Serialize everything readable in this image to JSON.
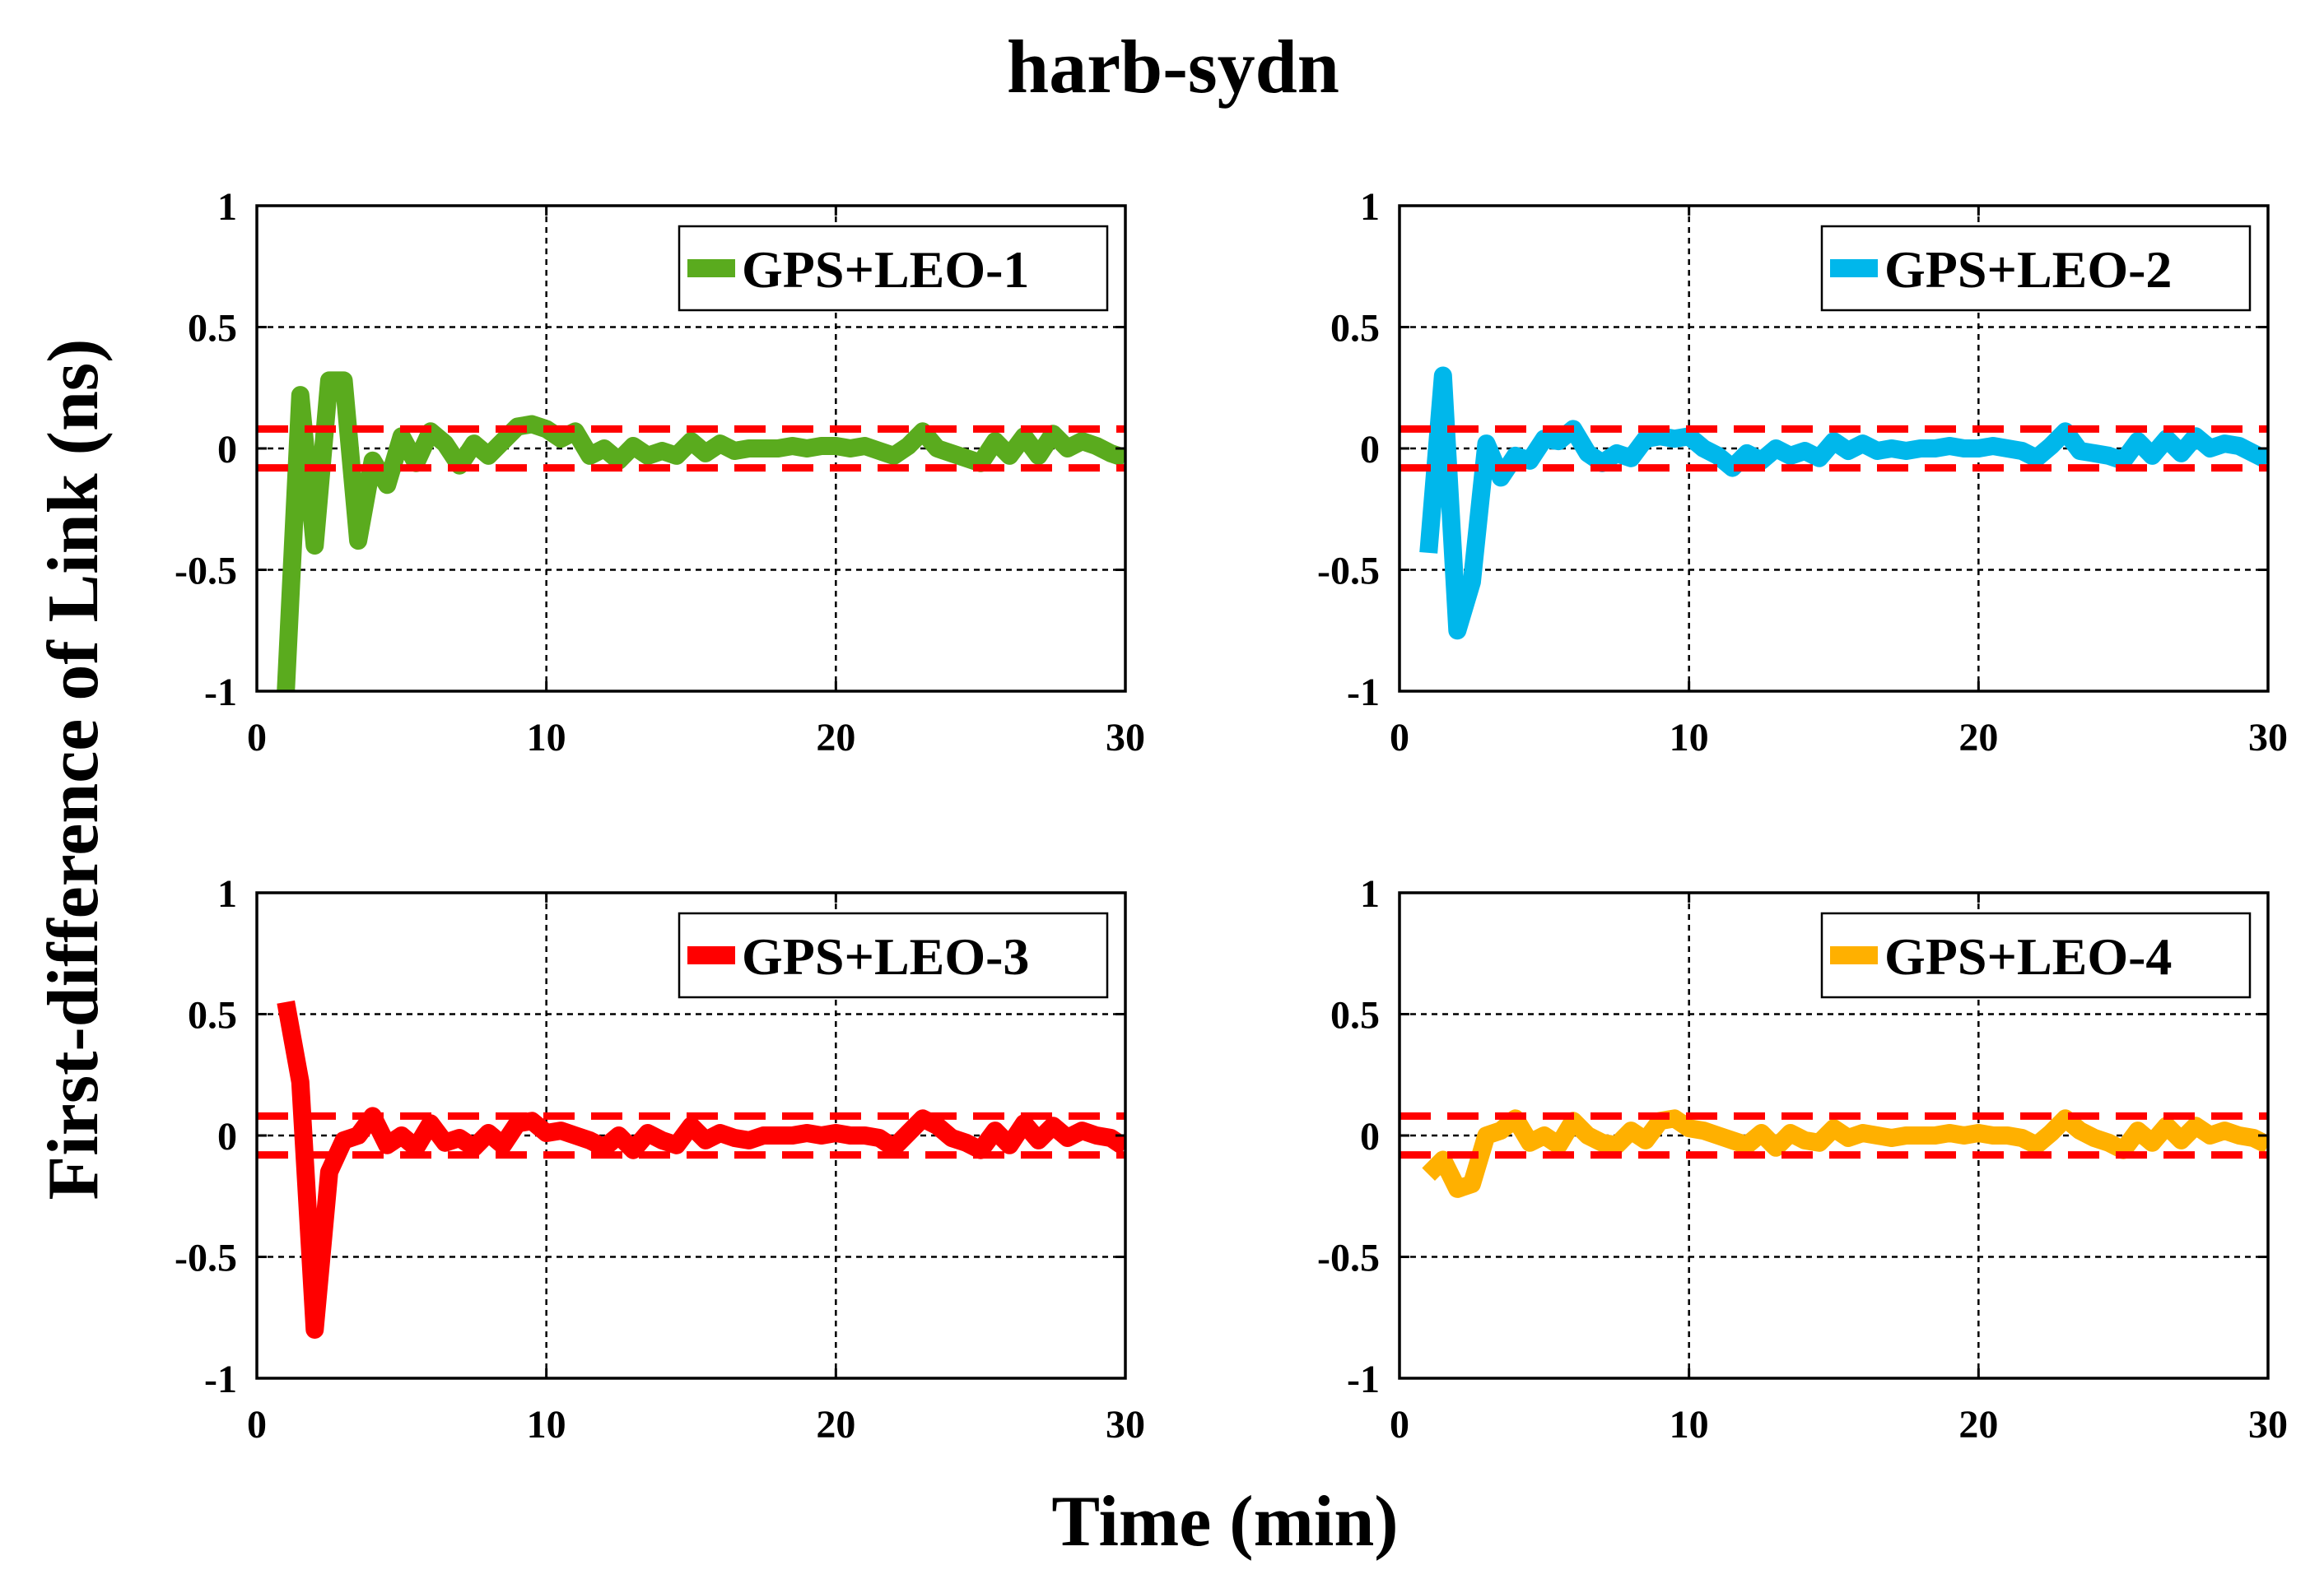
{
  "figure": {
    "title": "harb-sydn",
    "xlabel": "Time (min)",
    "ylabel": "First-difference of Link (ns)"
  },
  "style": {
    "threshold_color": "#ff0000",
    "grid_color": "#000000"
  },
  "chart_data": [
    {
      "type": "line",
      "panel": "top-left",
      "legend_position": "top-right",
      "grid": true,
      "xlim": [
        0,
        30
      ],
      "ylim": [
        -1,
        1
      ],
      "xticks": [
        0,
        10,
        20,
        30
      ],
      "yticks": [
        -1,
        -0.5,
        0,
        0.5,
        1
      ],
      "xtick_labels": [
        "0",
        "10",
        "20",
        "30"
      ],
      "ytick_labels": [
        "-1",
        "-0.5",
        "0",
        "0.5",
        "1"
      ],
      "thresholds": [
        0.08,
        -0.08
      ],
      "series": [
        {
          "name": "GPS+LEO-1",
          "color": "#5aab1e",
          "x": [
            1.0,
            1.5,
            2.0,
            2.5,
            3.0,
            3.5,
            4.0,
            4.5,
            5.0,
            5.5,
            6.0,
            6.5,
            7.0,
            7.5,
            8.0,
            8.5,
            9.0,
            9.5,
            10.0,
            10.5,
            11.0,
            11.5,
            12.0,
            12.5,
            13.0,
            13.5,
            14.0,
            14.5,
            15.0,
            15.5,
            16.0,
            16.5,
            17.0,
            17.5,
            18.0,
            18.5,
            19.0,
            19.5,
            20.0,
            20.5,
            21.0,
            21.5,
            22.0,
            22.5,
            23.0,
            23.5,
            24.0,
            24.5,
            25.0,
            25.5,
            26.0,
            26.5,
            27.0,
            27.5,
            28.0,
            28.5,
            29.0,
            29.5,
            30.0
          ],
          "y": [
            -1.0,
            0.22,
            -0.4,
            0.28,
            0.28,
            -0.38,
            -0.05,
            -0.15,
            0.05,
            -0.06,
            0.07,
            0.02,
            -0.07,
            0.02,
            -0.03,
            0.03,
            0.09,
            0.1,
            0.08,
            0.04,
            0.07,
            -0.03,
            0.0,
            -0.05,
            0.01,
            -0.03,
            -0.01,
            -0.03,
            0.03,
            -0.02,
            0.02,
            -0.01,
            0.0,
            0.0,
            0.0,
            0.01,
            0.0,
            0.01,
            0.01,
            0.0,
            0.01,
            -0.01,
            -0.03,
            0.01,
            0.07,
            0.0,
            -0.02,
            -0.04,
            -0.06,
            0.03,
            -0.03,
            0.05,
            -0.03,
            0.06,
            0.0,
            0.03,
            0.01,
            -0.02,
            -0.04
          ]
        }
      ]
    },
    {
      "type": "line",
      "panel": "top-right",
      "legend_position": "top-right",
      "grid": true,
      "xlim": [
        0,
        30
      ],
      "ylim": [
        -1,
        1
      ],
      "xticks": [
        0,
        10,
        20,
        30
      ],
      "yticks": [
        -1,
        -0.5,
        0,
        0.5,
        1
      ],
      "xtick_labels": [
        "0",
        "10",
        "20",
        "30"
      ],
      "ytick_labels": [
        "-1",
        "-0.5",
        "0",
        "0.5",
        "1"
      ],
      "thresholds": [
        0.08,
        -0.08
      ],
      "series": [
        {
          "name": "GPS+LEO-2",
          "color": "#00b7eb",
          "x": [
            1.0,
            1.5,
            2.0,
            2.5,
            3.0,
            3.5,
            4.0,
            4.5,
            5.0,
            5.5,
            6.0,
            6.5,
            7.0,
            7.5,
            8.0,
            8.5,
            9.0,
            9.5,
            10.0,
            10.5,
            11.0,
            11.5,
            12.0,
            12.5,
            13.0,
            13.5,
            14.0,
            14.5,
            15.0,
            15.5,
            16.0,
            16.5,
            17.0,
            17.5,
            18.0,
            18.5,
            19.0,
            19.5,
            20.0,
            20.5,
            21.0,
            21.5,
            22.0,
            22.5,
            23.0,
            23.5,
            24.0,
            24.5,
            25.0,
            25.5,
            26.0,
            26.5,
            27.0,
            27.5,
            28.0,
            28.5,
            29.0,
            29.5,
            30.0
          ],
          "y": [
            -0.43,
            0.3,
            -0.75,
            -0.55,
            0.02,
            -0.12,
            -0.03,
            -0.05,
            0.04,
            0.03,
            0.08,
            -0.02,
            -0.06,
            -0.02,
            -0.04,
            0.04,
            0.05,
            0.04,
            0.05,
            0.0,
            -0.03,
            -0.08,
            -0.02,
            -0.05,
            0.0,
            -0.03,
            -0.01,
            -0.04,
            0.03,
            -0.01,
            0.02,
            -0.01,
            0.0,
            -0.01,
            0.0,
            0.0,
            0.01,
            0.0,
            0.0,
            0.01,
            0.0,
            -0.01,
            -0.04,
            0.01,
            0.07,
            -0.01,
            -0.02,
            -0.03,
            -0.05,
            0.03,
            -0.03,
            0.04,
            -0.02,
            0.05,
            0.0,
            0.02,
            0.01,
            -0.02,
            -0.05
          ]
        }
      ]
    },
    {
      "type": "line",
      "panel": "bottom-left",
      "legend_position": "top-right",
      "grid": true,
      "xlim": [
        0,
        30
      ],
      "ylim": [
        -1,
        1
      ],
      "xticks": [
        0,
        10,
        20,
        30
      ],
      "yticks": [
        -1,
        -0.5,
        0,
        0.5,
        1
      ],
      "xtick_labels": [
        "0",
        "10",
        "20",
        "30"
      ],
      "ytick_labels": [
        "-1",
        "-0.5",
        "0",
        "0.5",
        "1"
      ],
      "thresholds": [
        0.08,
        -0.08
      ],
      "series": [
        {
          "name": "GPS+LEO-3",
          "color": "#ff0000",
          "x": [
            1.0,
            1.5,
            2.0,
            2.5,
            3.0,
            3.5,
            4.0,
            4.5,
            5.0,
            5.5,
            6.0,
            6.5,
            7.0,
            7.5,
            8.0,
            8.5,
            9.0,
            9.5,
            10.0,
            10.5,
            11.0,
            11.5,
            12.0,
            12.5,
            13.0,
            13.5,
            14.0,
            14.5,
            15.0,
            15.5,
            16.0,
            16.5,
            17.0,
            17.5,
            18.0,
            18.5,
            19.0,
            19.5,
            20.0,
            20.5,
            21.0,
            21.5,
            22.0,
            22.5,
            23.0,
            23.5,
            24.0,
            24.5,
            25.0,
            25.5,
            26.0,
            26.5,
            27.0,
            27.5,
            28.0,
            28.5,
            29.0,
            29.5,
            30.0
          ],
          "y": [
            0.55,
            0.22,
            -0.8,
            -0.15,
            -0.02,
            0.0,
            0.08,
            -0.04,
            0.0,
            -0.05,
            0.05,
            -0.03,
            -0.01,
            -0.05,
            0.01,
            -0.04,
            0.05,
            0.06,
            0.01,
            0.02,
            0.0,
            -0.02,
            -0.05,
            0.0,
            -0.06,
            0.01,
            -0.02,
            -0.04,
            0.04,
            -0.02,
            0.01,
            -0.01,
            -0.02,
            0.0,
            0.0,
            0.0,
            0.01,
            0.0,
            0.01,
            0.0,
            0.0,
            -0.01,
            -0.05,
            0.01,
            0.07,
            0.04,
            -0.01,
            -0.03,
            -0.06,
            0.02,
            -0.04,
            0.05,
            -0.02,
            0.04,
            -0.01,
            0.02,
            0.0,
            -0.01,
            -0.05
          ]
        }
      ]
    },
    {
      "type": "line",
      "panel": "bottom-right",
      "legend_position": "top-right",
      "grid": true,
      "xlim": [
        0,
        30
      ],
      "ylim": [
        -1,
        1
      ],
      "xticks": [
        0,
        10,
        20,
        30
      ],
      "yticks": [
        -1,
        -0.5,
        0,
        0.5,
        1
      ],
      "xtick_labels": [
        "0",
        "10",
        "20",
        "30"
      ],
      "ytick_labels": [
        "-1",
        "-0.5",
        "0",
        "0.5",
        "1"
      ],
      "thresholds": [
        0.08,
        -0.08
      ],
      "series": [
        {
          "name": "GPS+LEO-4",
          "color": "#ffb000",
          "x": [
            1.0,
            1.5,
            2.0,
            2.5,
            3.0,
            3.5,
            4.0,
            4.5,
            5.0,
            5.5,
            6.0,
            6.5,
            7.0,
            7.5,
            8.0,
            8.5,
            9.0,
            9.5,
            10.0,
            10.5,
            11.0,
            11.5,
            12.0,
            12.5,
            13.0,
            13.5,
            14.0,
            14.5,
            15.0,
            15.5,
            16.0,
            16.5,
            17.0,
            17.5,
            18.0,
            18.5,
            19.0,
            19.5,
            20.0,
            20.5,
            21.0,
            21.5,
            22.0,
            22.5,
            23.0,
            23.5,
            24.0,
            24.5,
            25.0,
            25.5,
            26.0,
            26.5,
            27.0,
            27.5,
            28.0,
            28.5,
            29.0,
            29.5,
            30.0
          ],
          "y": [
            -0.16,
            -0.1,
            -0.22,
            -0.2,
            0.0,
            0.02,
            0.07,
            -0.03,
            0.0,
            -0.04,
            0.06,
            0.0,
            -0.03,
            -0.04,
            0.02,
            -0.02,
            0.06,
            0.07,
            0.03,
            0.02,
            0.0,
            -0.02,
            -0.04,
            0.01,
            -0.05,
            0.01,
            -0.02,
            -0.03,
            0.03,
            -0.01,
            0.01,
            0.0,
            -0.01,
            0.0,
            0.0,
            0.0,
            0.01,
            0.0,
            0.01,
            0.0,
            0.0,
            -0.01,
            -0.04,
            0.01,
            0.07,
            0.02,
            -0.01,
            -0.03,
            -0.06,
            0.02,
            -0.03,
            0.04,
            -0.02,
            0.04,
            0.0,
            0.02,
            0.0,
            -0.01,
            -0.04
          ]
        }
      ]
    }
  ]
}
